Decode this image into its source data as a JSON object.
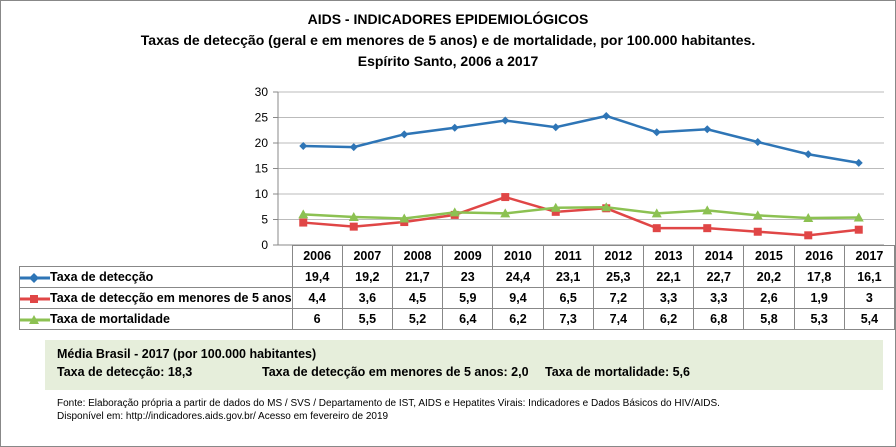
{
  "chart_data": {
    "type": "line",
    "title": "AIDS - INDICADORES EPIDEMIOLÓGICOS",
    "subtitle": "Taxas de detecção (geral e em menores de 5 anos) e de mortalidade, por 100.000 habitantes.",
    "subtitle2": "Espírito Santo, 2006 a 2017",
    "categories": [
      "2006",
      "2007",
      "2008",
      "2009",
      "2010",
      "2011",
      "2012",
      "2013",
      "2014",
      "2015",
      "2016",
      "2017"
    ],
    "ylim": [
      0,
      30
    ],
    "yticks": [
      "0",
      "5",
      "10",
      "15",
      "20",
      "25",
      "30"
    ],
    "grid": true,
    "legend": "data-table",
    "series": [
      {
        "name": "Taxa de detecção",
        "color": "#2e75b6",
        "marker": "diamond",
        "values": [
          19.4,
          19.2,
          21.7,
          23,
          24.4,
          23.1,
          25.3,
          22.1,
          22.7,
          20.2,
          17.8,
          16.1
        ],
        "labels": [
          "19,4",
          "19,2",
          "21,7",
          "23",
          "24,4",
          "23,1",
          "25,3",
          "22,1",
          "22,7",
          "20,2",
          "17,8",
          "16,1"
        ]
      },
      {
        "name": "Taxa de detecção em menores de 5 anos",
        "color": "#e04646",
        "marker": "square",
        "values": [
          4.4,
          3.6,
          4.5,
          5.9,
          9.4,
          6.5,
          7.2,
          3.3,
          3.3,
          2.6,
          1.9,
          3
        ],
        "labels": [
          "4,4",
          "3,6",
          "4,5",
          "5,9",
          "9,4",
          "6,5",
          "7,2",
          "3,3",
          "3,3",
          "2,6",
          "1,9",
          "3"
        ]
      },
      {
        "name": "Taxa de mortalidade",
        "color": "#8cc152",
        "marker": "triangle",
        "values": [
          6,
          5.5,
          5.2,
          6.4,
          6.2,
          7.3,
          7.4,
          6.2,
          6.8,
          5.8,
          5.3,
          5.4
        ],
        "labels": [
          "6",
          "5,5",
          "5,2",
          "6,4",
          "6,2",
          "7,3",
          "7,4",
          "6,2",
          "6,8",
          "5,8",
          "5,3",
          "5,4"
        ]
      }
    ]
  },
  "brasil": {
    "heading": "Média Brasil - 2017 (por 100.000 habitantes)",
    "deteccao": "Taxa de detecção: 18,3",
    "menores": "Taxa de detecção em menores de 5 anos: 2,0",
    "mortalidade": "Taxa de mortalidade: 5,6"
  },
  "footer": {
    "fonte": "Fonte: Elaboração própria a partir de dados do MS / SVS / Departamento de IST, AIDS e Hepatites Virais: Indicadores e Dados Básicos do HIV/AIDS.",
    "disponivel": "Disponível em: http://indicadores.aids.gov.br/   Acesso em fevereiro de 2019"
  }
}
